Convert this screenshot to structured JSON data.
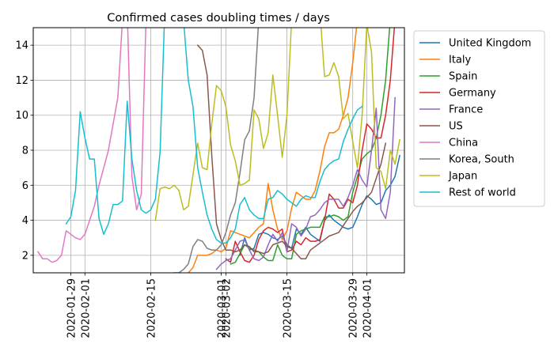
{
  "chart_data": {
    "type": "line",
    "title": "Confirmed cases doubling times / days",
    "xlabel": "",
    "ylabel": "",
    "x_axis": "date",
    "xlim": [
      "2020-01-21",
      "2020-04-09"
    ],
    "ylim": [
      1,
      15
    ],
    "grid": true,
    "legend_position": "outside-right",
    "xticks": [
      "2020-01-29",
      "2020-02-01",
      "2020-02-15",
      "2020-03-01",
      "2020-03-02",
      "2020-03-15",
      "2020-03-29",
      "2020-04-01"
    ],
    "yticks": [
      2,
      4,
      6,
      8,
      10,
      12,
      14
    ],
    "series": [
      {
        "name": "United Kingdom",
        "color": "#1f77b4",
        "start": "2020-03-05",
        "values": [
          2.0,
          3.0,
          2.3,
          2.4,
          3.2,
          3.3,
          3.2,
          3.0,
          2.9,
          3.1,
          2.6,
          2.4,
          3.5,
          3.2,
          3.6,
          3.2,
          3.0,
          2.8,
          4.0,
          4.3,
          4.0,
          3.8,
          3.6,
          3.5,
          3.6,
          4.2,
          4.9,
          5.4,
          5.2,
          4.9,
          5.0,
          5.7,
          6.0,
          6.5,
          7.7
        ]
      },
      {
        "name": "Italy",
        "color": "#ff7f0e",
        "start": "2020-02-23",
        "values": [
          1.0,
          1.3,
          2.0,
          2.0,
          2.0,
          2.1,
          2.3,
          2.2,
          2.4,
          3.4,
          3.3,
          3.2,
          3.1,
          3.0,
          3.3,
          3.6,
          3.8,
          6.1,
          4.6,
          3.5,
          2.9,
          3.4,
          4.7,
          5.6,
          5.4,
          5.2,
          5.2,
          5.7,
          6.8,
          8.2,
          9.0,
          9.0,
          9.2,
          10.0,
          11.0,
          13.0,
          15.5,
          17.0
        ]
      },
      {
        "name": "Spain",
        "color": "#2ca02c",
        "start": "2020-03-03",
        "values": [
          1.5,
          1.6,
          2.1,
          2.6,
          2.4,
          2.3,
          2.2,
          1.9,
          1.7,
          1.7,
          2.6,
          2.0,
          1.8,
          1.8,
          3.2,
          3.4,
          3.5,
          3.6,
          3.6,
          3.6,
          4.2,
          4.2,
          4.3,
          4.2,
          4.0,
          4.2,
          5.6,
          6.5,
          7.5,
          7.8,
          8.0,
          8.7,
          10.0,
          12.0,
          15.5
        ]
      },
      {
        "name": "Germany",
        "color": "#d62728",
        "start": "2020-03-02",
        "values": [
          1.8,
          1.6,
          2.8,
          2.2,
          1.7,
          1.6,
          2.0,
          2.9,
          3.4,
          3.6,
          3.5,
          3.3,
          3.5,
          2.2,
          2.3,
          2.8,
          2.6,
          3.0,
          2.8,
          2.8,
          2.9,
          4.0,
          5.5,
          5.2,
          4.7,
          4.7,
          5.2,
          5.0,
          6.0,
          8.0,
          9.5,
          9.2,
          8.7,
          8.7,
          10.0,
          12.0,
          15.5
        ]
      },
      {
        "name": "France",
        "color": "#9467bd",
        "start": "2020-02-29",
        "values": [
          1.2,
          1.5,
          1.7,
          1.8,
          2.3,
          2.8,
          2.9,
          2.3,
          1.8,
          1.7,
          1.9,
          2.6,
          3.2,
          2.8,
          3.3,
          2.2,
          3.8,
          3.6,
          3.1,
          3.5,
          4.2,
          4.3,
          4.6,
          5.0,
          5.2,
          5.2,
          5.2,
          4.8,
          5.3,
          6.0,
          6.9,
          6.3,
          5.9,
          8.0,
          10.4,
          4.6,
          4.1,
          5.6,
          11.0
        ]
      },
      {
        "name": "US",
        "color": "#8c564b",
        "start": "2020-02-25",
        "values": [
          14.0,
          13.7,
          12.3,
          7.7,
          3.8,
          2.9,
          2.3,
          2.3,
          2.2,
          2.3,
          2.6,
          2.5,
          2.2,
          2.2,
          2.1,
          2.2,
          2.6,
          2.7,
          2.8,
          2.5,
          2.4,
          2.1,
          1.8,
          1.8,
          2.3,
          2.5,
          2.7,
          2.9,
          3.1,
          3.2,
          3.3,
          3.7,
          4.1,
          4.5,
          4.8,
          5.0,
          5.3,
          5.6,
          6.4,
          7.2,
          8.4
        ]
      },
      {
        "name": "China",
        "color": "#e377c2",
        "start": "2020-01-22",
        "values": [
          2.2,
          1.8,
          1.8,
          1.6,
          1.7,
          2.0,
          3.4,
          3.2,
          3.0,
          2.9,
          3.2,
          4.0,
          4.8,
          6.0,
          7.0,
          8.0,
          9.5,
          11.0,
          15.5,
          16.0,
          6.5,
          4.6,
          5.5,
          15.5,
          16.0
        ]
      },
      {
        "name": "Korea, South",
        "color": "#7f7f7f",
        "start": "2020-02-20",
        "values": [
          1.0,
          1.0,
          1.2,
          1.5,
          2.5,
          2.9,
          2.8,
          2.4,
          2.3,
          2.3,
          2.6,
          3.3,
          4.3,
          5.0,
          6.7,
          8.6,
          9.1,
          11.0,
          15.5,
          16.0
        ]
      },
      {
        "name": "Japan",
        "color": "#bcbd22",
        "start": "2020-02-16",
        "values": [
          4.0,
          5.8,
          5.9,
          5.8,
          6.0,
          5.7,
          4.6,
          4.8,
          6.6,
          8.4,
          7.0,
          6.9,
          9.5,
          11.7,
          11.4,
          10.5,
          8.3,
          7.4,
          6.0,
          6.1,
          6.3,
          10.3,
          9.8,
          8.1,
          9.0,
          12.3,
          10.0,
          7.6,
          10.0,
          15.5,
          16.0,
          16.0,
          16.0,
          16.0,
          16.0,
          16.0,
          12.2,
          12.3,
          13.0,
          12.2,
          9.8,
          10.1,
          8.5,
          7.0,
          10.0,
          15.2,
          13.6,
          7.0,
          6.8,
          5.8,
          8.0,
          7.2,
          8.6
        ]
      },
      {
        "name": "Rest of world",
        "color": "#17becf",
        "start": "2020-01-28",
        "values": [
          3.8,
          4.2,
          5.7,
          10.2,
          8.7,
          7.5,
          7.5,
          4.1,
          3.2,
          3.8,
          4.9,
          4.9,
          5.1,
          10.8,
          7.5,
          5.7,
          4.6,
          4.4,
          4.6,
          5.2,
          7.9,
          16.0,
          16.0,
          16.0,
          16.0,
          15.4,
          12.0,
          10.5,
          7.0,
          5.6,
          4.3,
          3.5,
          2.9,
          2.7,
          2.7,
          3.0,
          3.5,
          4.9,
          5.3,
          4.6,
          4.3,
          4.1,
          4.1,
          5.2,
          5.3,
          5.7,
          5.5,
          5.2,
          5.0,
          4.8,
          5.2,
          5.4,
          5.3,
          5.3,
          6.2,
          6.9,
          7.2,
          7.4,
          7.5,
          8.5,
          9.2,
          9.8,
          10.3,
          10.5
        ]
      }
    ]
  }
}
